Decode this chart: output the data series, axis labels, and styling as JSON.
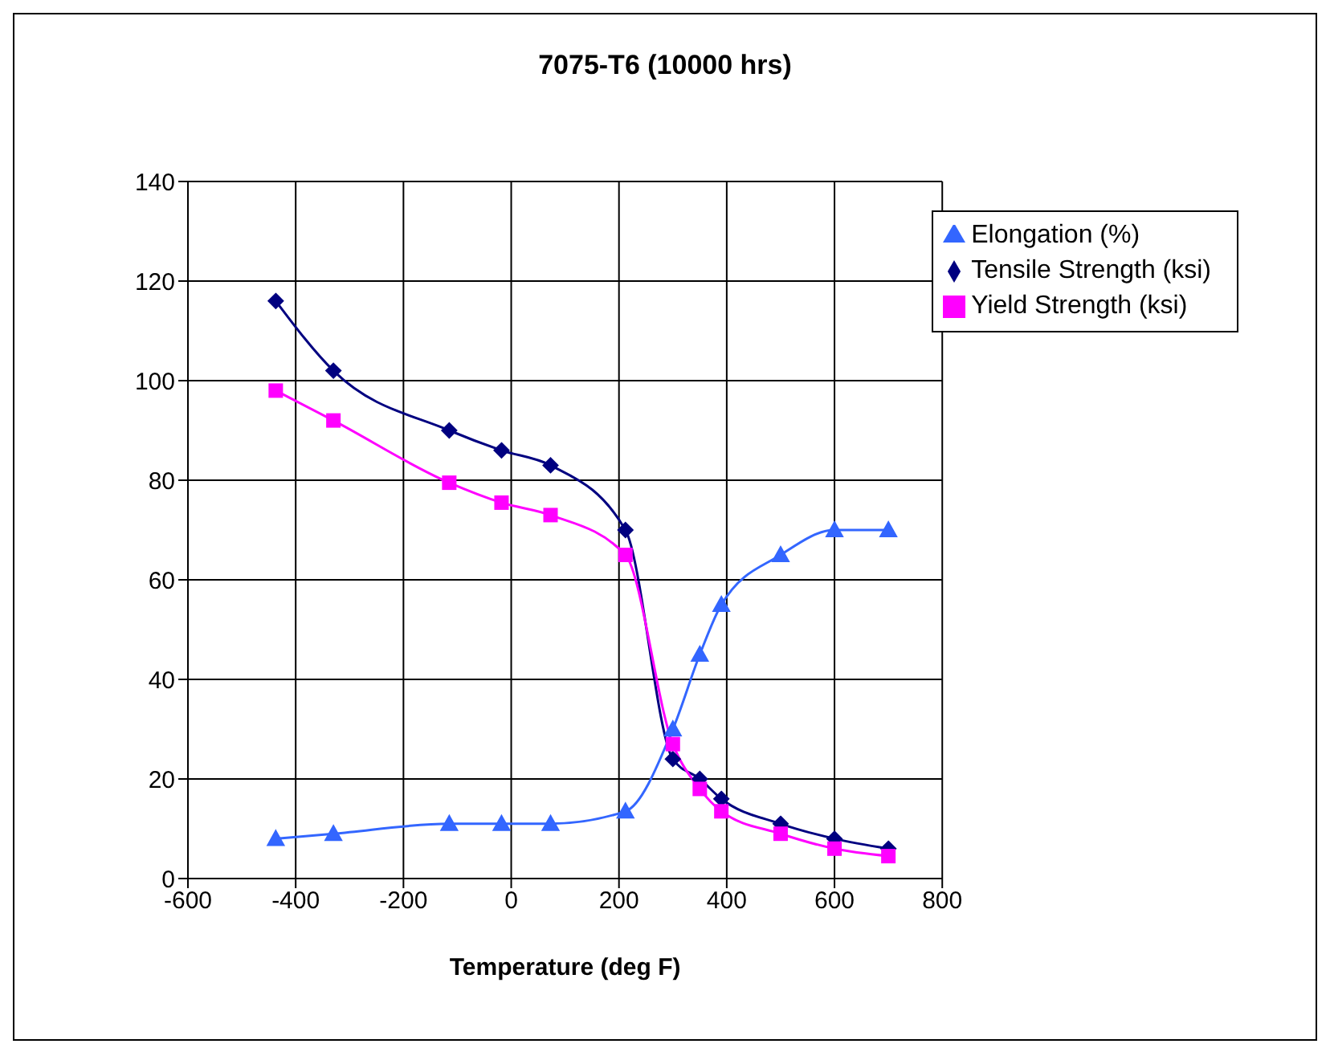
{
  "chart_data": {
    "type": "line",
    "title": "7075-T6 (10000 hrs)",
    "xlabel": "Temperature (deg F)",
    "xlim": [
      -600,
      800
    ],
    "xticks": [
      -600,
      -400,
      -200,
      0,
      200,
      400,
      600,
      800
    ],
    "ylim": [
      0,
      140
    ],
    "yticks": [
      0,
      20,
      40,
      60,
      80,
      100,
      120,
      140
    ],
    "grid": true,
    "legend": "top right",
    "series": [
      {
        "name": "Tensile Strength (ksi)",
        "color": "#000080",
        "marker": "diamond",
        "x": [
          -437,
          -330,
          -115,
          -18,
          73,
          212,
          300,
          350,
          390,
          500,
          600,
          700
        ],
        "values": [
          116,
          102,
          90,
          86,
          83,
          70,
          24,
          20,
          16,
          11,
          8,
          6
        ]
      },
      {
        "name": "Yield Strength (ksi)",
        "color": "#ff00ff",
        "marker": "square",
        "x": [
          -437,
          -330,
          -115,
          -18,
          73,
          212,
          300,
          350,
          390,
          500,
          600,
          700
        ],
        "values": [
          98,
          92,
          79.5,
          75.5,
          73,
          65,
          27,
          18,
          13.5,
          9,
          6,
          4.5
        ]
      },
      {
        "name": "Elongation (%)",
        "color": "#3366ff",
        "marker": "triangle",
        "x": [
          -437,
          -330,
          -115,
          -18,
          73,
          212,
          300,
          350,
          390,
          500,
          600,
          700
        ],
        "values": [
          8,
          9,
          11,
          11,
          11,
          13.5,
          30,
          45,
          55,
          65,
          70,
          70
        ]
      }
    ]
  }
}
